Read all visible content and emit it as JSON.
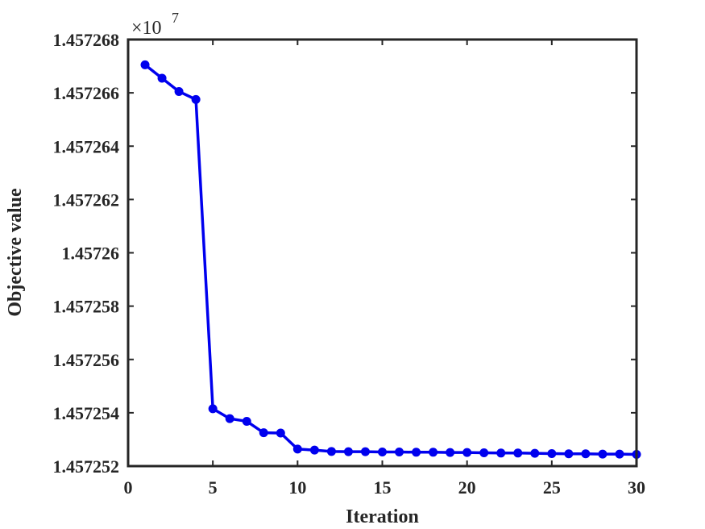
{
  "chart_data": {
    "type": "line",
    "title": "",
    "xlabel": "Iteration",
    "ylabel": "Objective value",
    "y_multiplier": "×10",
    "y_multiplier_exponent": "7",
    "xlim": [
      0,
      30
    ],
    "ylim": [
      1.457252,
      1.457268
    ],
    "x_ticks": [
      0,
      5,
      10,
      15,
      20,
      25,
      30
    ],
    "y_ticks": [
      1.457252,
      1.457254,
      1.457256,
      1.457258,
      1.45726,
      1.457262,
      1.457264,
      1.457266,
      1.457268
    ],
    "x_tick_labels": [
      "0",
      "5",
      "10",
      "15",
      "20",
      "25",
      "30"
    ],
    "y_tick_labels": [
      "1.457252",
      "1.457254",
      "1.457256",
      "1.457258",
      "1.45726",
      "1.457262",
      "1.457264",
      "1.457266",
      "1.457268"
    ],
    "grid": false,
    "line_color": "#0000ee",
    "axis_color": "#262626",
    "series": [
      {
        "x": [
          1,
          2,
          3,
          4,
          5,
          6,
          7,
          8,
          9,
          10,
          11,
          12,
          13,
          14,
          15,
          16,
          17,
          18,
          19,
          20,
          21,
          22,
          23,
          24,
          25,
          26,
          27,
          28,
          29,
          30
        ],
        "values": [
          1.45726705,
          1.45726655,
          1.45726605,
          1.45726575,
          1.45725415,
          1.45725378,
          1.45725368,
          1.45725325,
          1.45725324,
          1.45725264,
          1.4572526,
          1.45725255,
          1.45725254,
          1.45725254,
          1.45725253,
          1.45725253,
          1.45725252,
          1.45725252,
          1.45725251,
          1.45725251,
          1.4572525,
          1.45725249,
          1.45725249,
          1.45725248,
          1.45725247,
          1.45725246,
          1.45725246,
          1.45725245,
          1.45725245,
          1.45725244
        ]
      }
    ]
  }
}
